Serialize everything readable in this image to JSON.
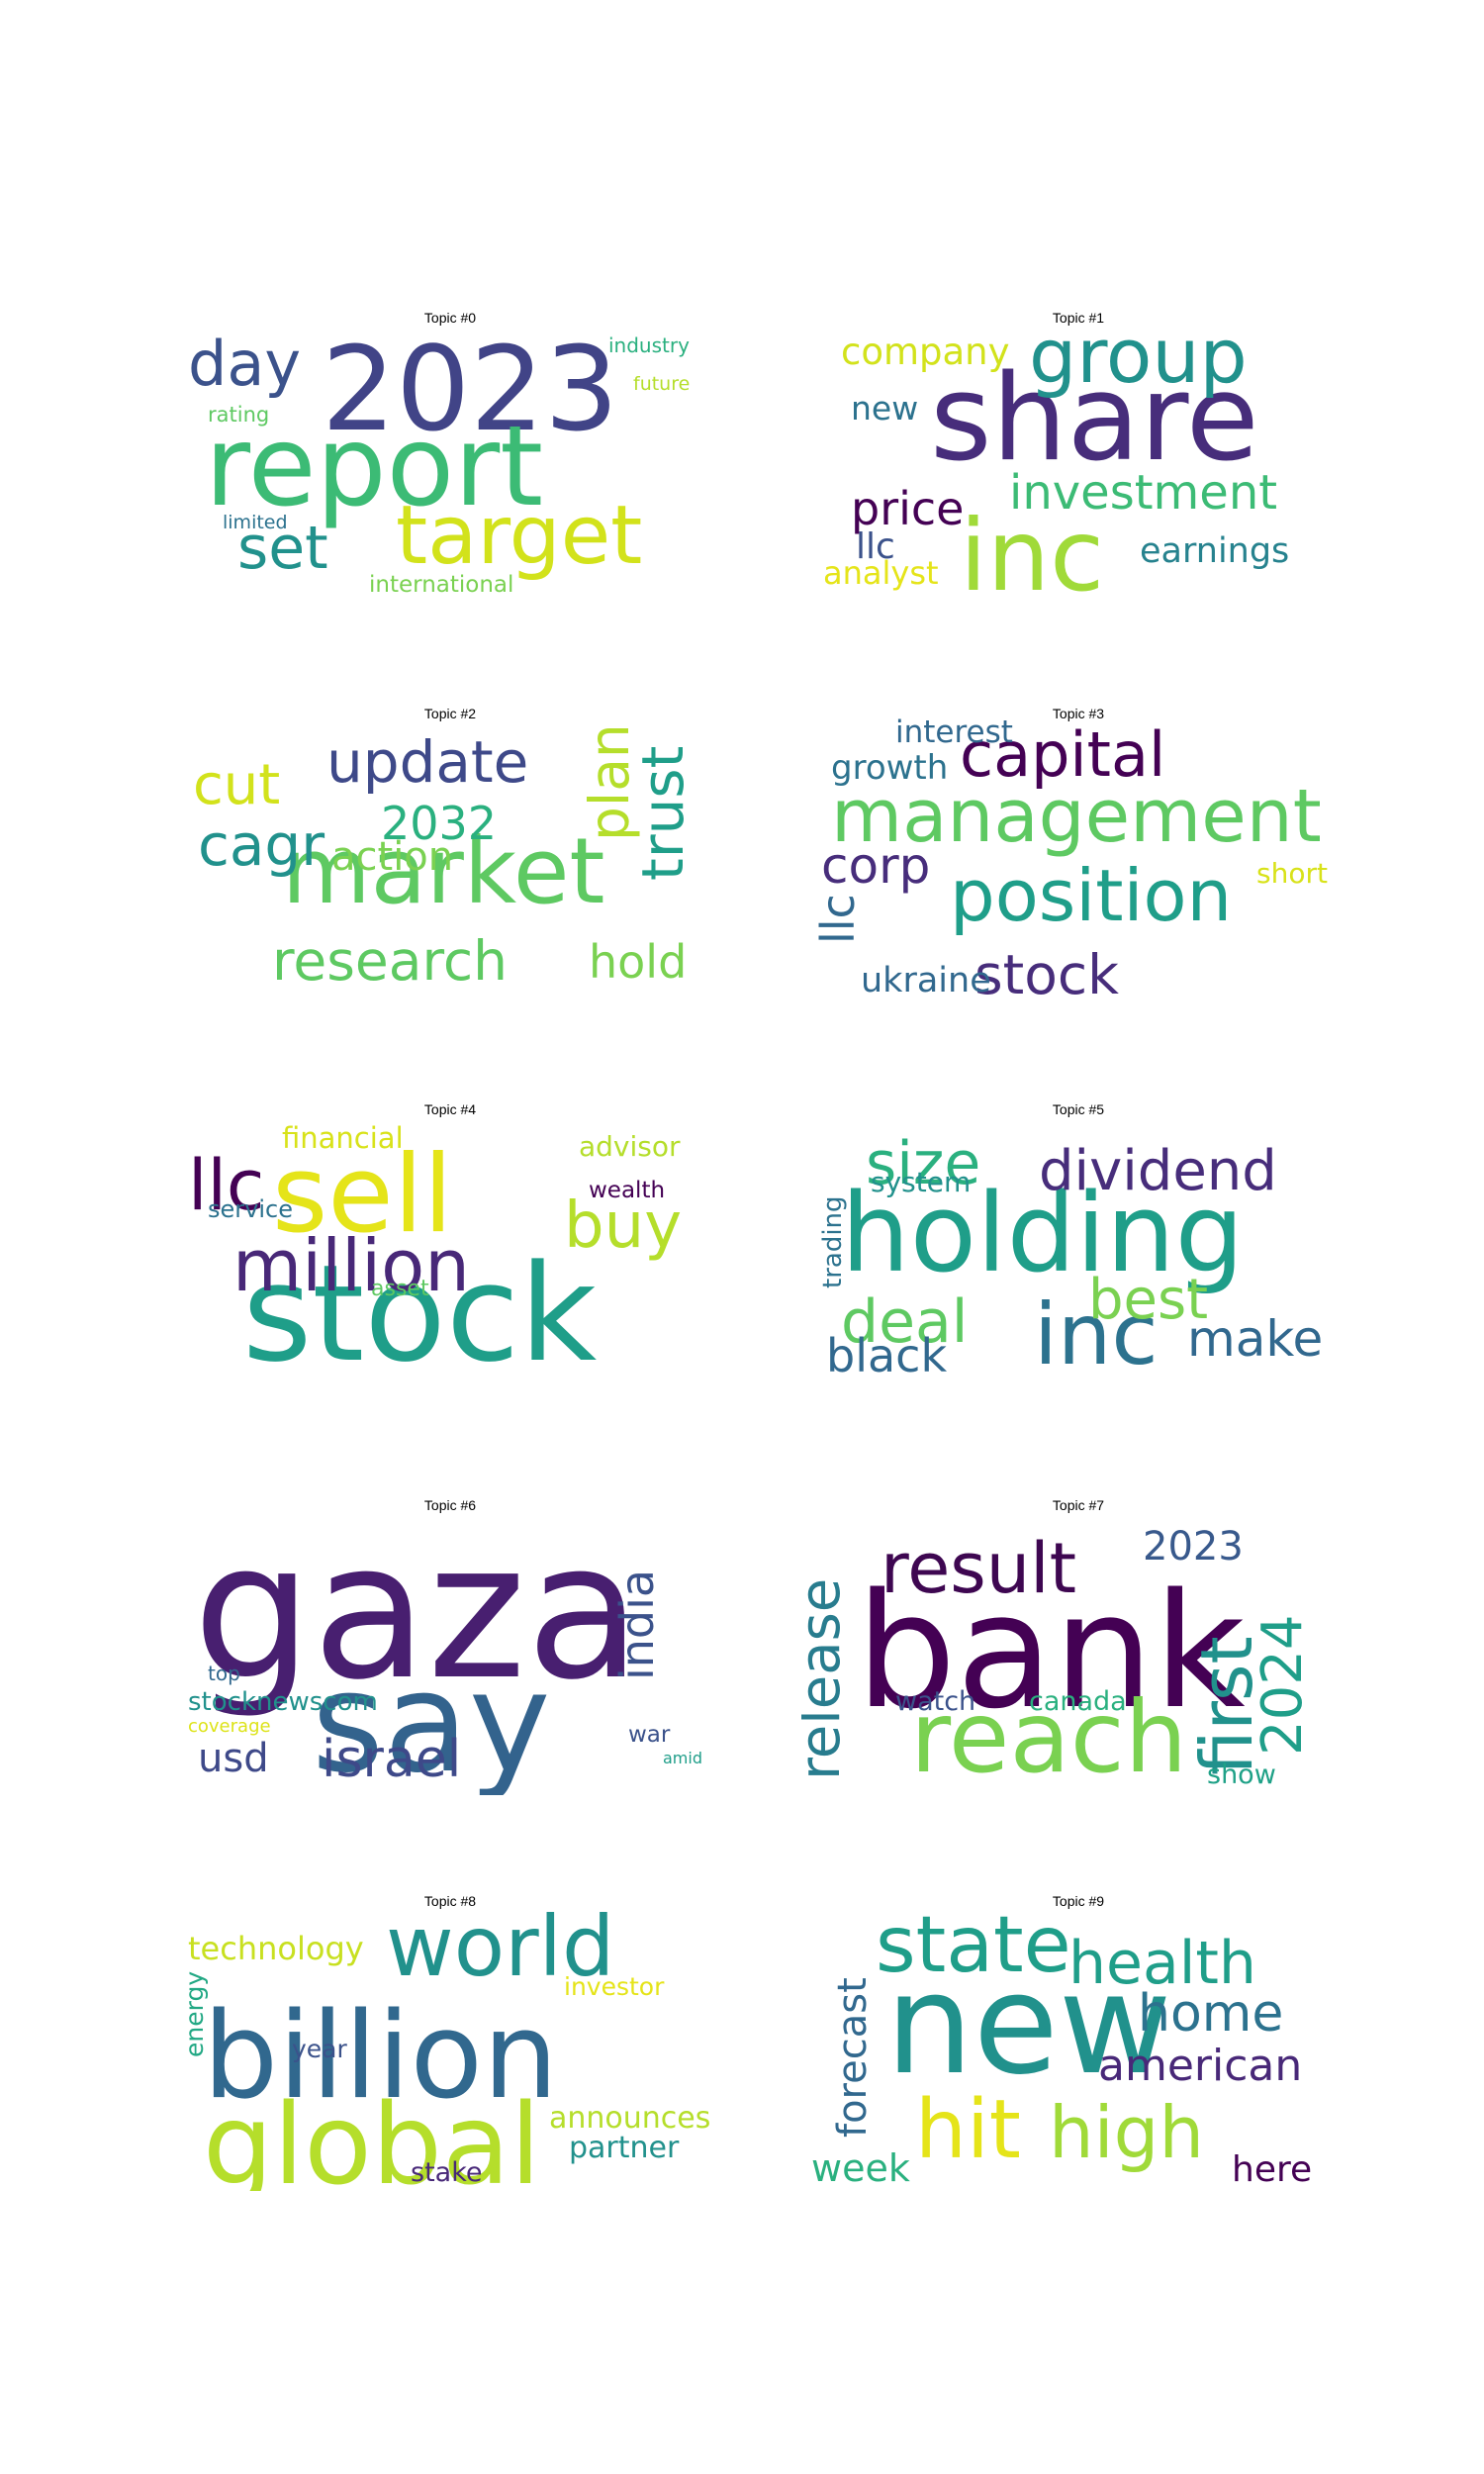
{
  "topics": [
    {
      "title": "Topic #0",
      "words": [
        {
          "text": "2023",
          "color": "#414487"
        },
        {
          "text": "report",
          "color": "#3cbb75"
        },
        {
          "text": "target",
          "color": "#d2e21b"
        },
        {
          "text": "day",
          "color": "#3b528b"
        },
        {
          "text": "set",
          "color": "#21918c"
        },
        {
          "text": "industry",
          "color": "#2ab07f"
        },
        {
          "text": "future",
          "color": "#b5de2b"
        },
        {
          "text": "rating",
          "color": "#5ec962"
        },
        {
          "text": "limited",
          "color": "#2c728e"
        },
        {
          "text": "international",
          "color": "#7ad151"
        }
      ]
    },
    {
      "title": "Topic #1",
      "words": [
        {
          "text": "share",
          "color": "#472d7b"
        },
        {
          "text": "inc",
          "color": "#a0da39"
        },
        {
          "text": "group",
          "color": "#21918c"
        },
        {
          "text": "investment",
          "color": "#3cbb75"
        },
        {
          "text": "company",
          "color": "#d2e21b"
        },
        {
          "text": "price",
          "color": "#440154"
        },
        {
          "text": "new",
          "color": "#2c728e"
        },
        {
          "text": "llc",
          "color": "#3b528b"
        },
        {
          "text": "earnings",
          "color": "#26828e"
        },
        {
          "text": "analyst",
          "color": "#e5e419"
        }
      ]
    },
    {
      "title": "Topic #2",
      "words": [
        {
          "text": "market",
          "color": "#5ec962"
        },
        {
          "text": "update",
          "color": "#3e4989"
        },
        {
          "text": "cut",
          "color": "#d2e21b"
        },
        {
          "text": "cagr",
          "color": "#21918c"
        },
        {
          "text": "2032",
          "color": "#2ab07f"
        },
        {
          "text": "plan",
          "color": "#b5de2b"
        },
        {
          "text": "trust",
          "color": "#1f9e89"
        },
        {
          "text": "action",
          "color": "#7ad151"
        },
        {
          "text": "research",
          "color": "#5ec962"
        },
        {
          "text": "hold",
          "color": "#7ad151"
        }
      ]
    },
    {
      "title": "Topic #3",
      "words": [
        {
          "text": "management",
          "color": "#5ec962"
        },
        {
          "text": "capital",
          "color": "#440154"
        },
        {
          "text": "position",
          "color": "#1f9e89"
        },
        {
          "text": "stock",
          "color": "#472d7b"
        },
        {
          "text": "interest",
          "color": "#31688e"
        },
        {
          "text": "growth",
          "color": "#2c728e"
        },
        {
          "text": "corp",
          "color": "#472d7b"
        },
        {
          "text": "short",
          "color": "#d8e219"
        },
        {
          "text": "llc",
          "color": "#31688e"
        },
        {
          "text": "ukraine",
          "color": "#31688e"
        }
      ]
    },
    {
      "title": "Topic #4",
      "words": [
        {
          "text": "stock",
          "color": "#1f9e89"
        },
        {
          "text": "sell",
          "color": "#e5e419"
        },
        {
          "text": "million",
          "color": "#482878"
        },
        {
          "text": "llc",
          "color": "#440154"
        },
        {
          "text": "buy",
          "color": "#b5de2b"
        },
        {
          "text": "financial",
          "color": "#d8e219"
        },
        {
          "text": "advisor",
          "color": "#b5de2b"
        },
        {
          "text": "wealth",
          "color": "#440154"
        },
        {
          "text": "service",
          "color": "#2c728e"
        },
        {
          "text": "asset",
          "color": "#5ec962"
        }
      ]
    },
    {
      "title": "Topic #5",
      "words": [
        {
          "text": "holding",
          "color": "#1f9e89"
        },
        {
          "text": "inc",
          "color": "#2c728e"
        },
        {
          "text": "dividend",
          "color": "#472d7b"
        },
        {
          "text": "size",
          "color": "#2ab07f"
        },
        {
          "text": "deal",
          "color": "#5ec962"
        },
        {
          "text": "best",
          "color": "#7ad151"
        },
        {
          "text": "make",
          "color": "#31688e"
        },
        {
          "text": "black",
          "color": "#31688e"
        },
        {
          "text": "system",
          "color": "#21918c"
        },
        {
          "text": "trading",
          "color": "#2c728e"
        }
      ]
    },
    {
      "title": "Topic #6",
      "words": [
        {
          "text": "gaza",
          "color": "#481f70"
        },
        {
          "text": "say",
          "color": "#33638d"
        },
        {
          "text": "india",
          "color": "#3b528b"
        },
        {
          "text": "israel",
          "color": "#3e4989"
        },
        {
          "text": "usd",
          "color": "#3e4989"
        },
        {
          "text": "stocknewscom",
          "color": "#21918c"
        },
        {
          "text": "top",
          "color": "#31688e"
        },
        {
          "text": "coverage",
          "color": "#dde318"
        },
        {
          "text": "war",
          "color": "#3b528b"
        },
        {
          "text": "amid",
          "color": "#1f9e89"
        }
      ]
    },
    {
      "title": "Topic #7",
      "words": [
        {
          "text": "bank",
          "color": "#440154"
        },
        {
          "text": "reach",
          "color": "#7ad151"
        },
        {
          "text": "result",
          "color": "#3e0751"
        },
        {
          "text": "release",
          "color": "#287c8e"
        },
        {
          "text": "first",
          "color": "#21918c"
        },
        {
          "text": "2024",
          "color": "#1f9e89"
        },
        {
          "text": "2023",
          "color": "#38598c"
        },
        {
          "text": "watch",
          "color": "#3b528b"
        },
        {
          "text": "canada",
          "color": "#2ab07f"
        },
        {
          "text": "show",
          "color": "#1fa187"
        }
      ]
    },
    {
      "title": "Topic #8",
      "words": [
        {
          "text": "billion",
          "color": "#31688e"
        },
        {
          "text": "global",
          "color": "#b5de2b"
        },
        {
          "text": "world",
          "color": "#21918c"
        },
        {
          "text": "technology",
          "color": "#c8e020"
        },
        {
          "text": "investor",
          "color": "#e5e419"
        },
        {
          "text": "energy",
          "color": "#22a884"
        },
        {
          "text": "year",
          "color": "#3b528b"
        },
        {
          "text": "announces",
          "color": "#b5de2b"
        },
        {
          "text": "partner",
          "color": "#21918c"
        },
        {
          "text": "stake",
          "color": "#482878"
        }
      ]
    },
    {
      "title": "Topic #9",
      "words": [
        {
          "text": "new",
          "color": "#21918c"
        },
        {
          "text": "state",
          "color": "#1f9e89"
        },
        {
          "text": "health",
          "color": "#1f9e89"
        },
        {
          "text": "home",
          "color": "#2c728e"
        },
        {
          "text": "american",
          "color": "#482878"
        },
        {
          "text": "hit",
          "color": "#e5e419"
        },
        {
          "text": "high",
          "color": "#a0da39"
        },
        {
          "text": "forecast",
          "color": "#31688e"
        },
        {
          "text": "week",
          "color": "#2ab07f"
        },
        {
          "text": "here",
          "color": "#440154"
        }
      ]
    }
  ]
}
